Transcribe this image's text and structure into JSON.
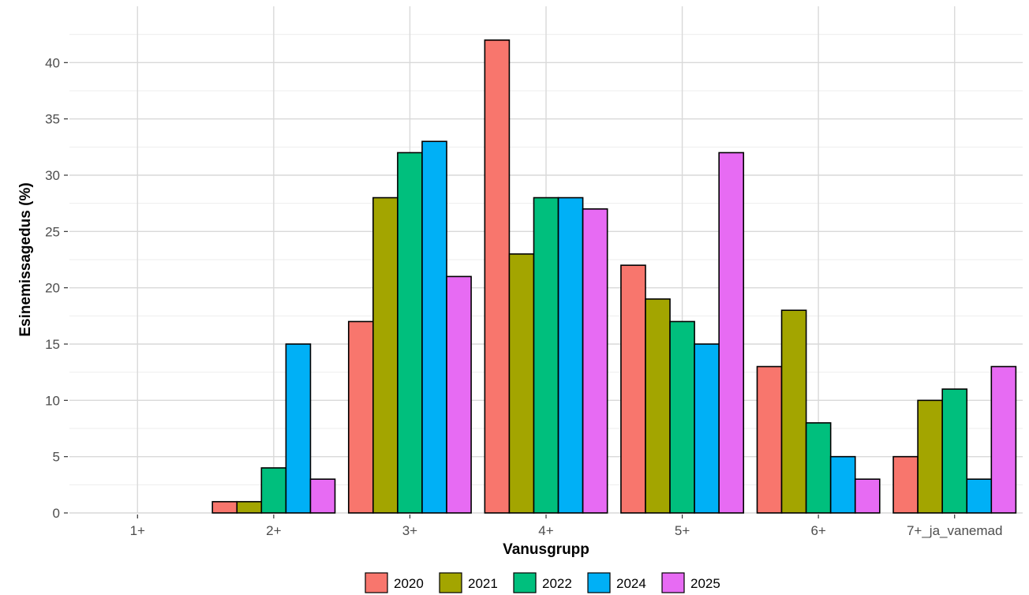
{
  "chart_data": {
    "type": "bar",
    "xlabel": "Vanusgrupp",
    "ylabel": "Esinemissagedus (%)",
    "categories": [
      "1+",
      "2+",
      "3+",
      "4+",
      "5+",
      "6+",
      "7+_ja_vanemad"
    ],
    "ylim": [
      0,
      45
    ],
    "y_ticks": [
      "0",
      "5",
      "10",
      "15",
      "20",
      "25",
      "30",
      "35",
      "40"
    ],
    "grid": true,
    "legend_position": "bottom",
    "series": [
      {
        "name": "2020",
        "color": "#F8766D",
        "values": [
          null,
          1,
          17,
          42,
          22,
          13,
          5
        ]
      },
      {
        "name": "2021",
        "color": "#A3A500",
        "values": [
          null,
          1,
          28,
          23,
          19,
          18,
          10
        ]
      },
      {
        "name": "2022",
        "color": "#00BF7D",
        "values": [
          null,
          4,
          32,
          28,
          17,
          8,
          11
        ]
      },
      {
        "name": "2024",
        "color": "#00B0F6",
        "values": [
          null,
          15,
          33,
          28,
          15,
          5,
          3
        ]
      },
      {
        "name": "2025",
        "color": "#E76BF3",
        "values": [
          null,
          3,
          21,
          27,
          32,
          3,
          13
        ]
      }
    ]
  }
}
